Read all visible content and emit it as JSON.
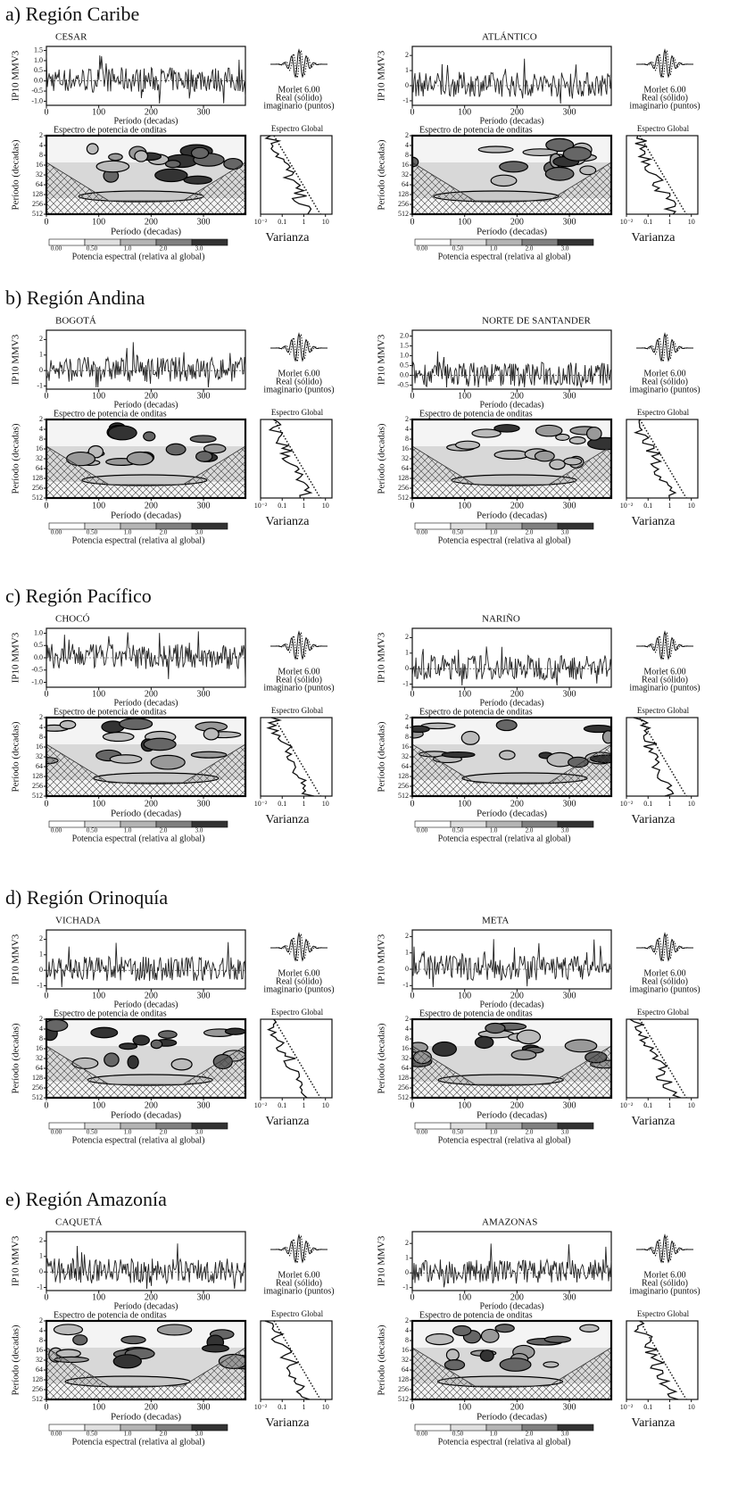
{
  "figure": {
    "labels": {
      "ts_ylabel": "IP10 MMV3",
      "period_label": "Período (decadas)",
      "morlet": "Morlet 6.00",
      "real": "Real (sólido)",
      "imag": "imaginario (puntos)",
      "spectrum_title": "Espectro de potencia de onditas",
      "global_title": "Espectro Global",
      "variance": "Varianza",
      "colorbar_label": "Potencia espectral (relativa al global)"
    },
    "time_xlim": [
      0,
      380
    ],
    "time_xticks": [
      0,
      100,
      200,
      300
    ],
    "period_ylim": [
      2,
      512
    ],
    "period_yticks": [
      2,
      4,
      8,
      16,
      32,
      64,
      128,
      256,
      512
    ],
    "variance_xlim": [
      0.01,
      20
    ],
    "variance_xticks": [
      {
        "value": 0.01,
        "label": "10⁻²"
      },
      0.1,
      1,
      10
    ],
    "colorbar_ticks": [
      {
        "value": 0,
        "label": "0.00"
      },
      {
        "value": 0.5,
        "label": "0.50"
      },
      {
        "value": 1,
        "label": "1.0"
      },
      {
        "value": 2,
        "label": "2.0"
      },
      {
        "value": 3,
        "label": "3.0"
      }
    ],
    "regions": [
      {
        "title": "a) Región Caribe",
        "panels": [
          {
            "name": "CESAR",
            "ylim": [
              -1.2,
              1.7
            ],
            "yticks": [
              1.5,
              {
                "value": 1,
                "label": "1.0"
              },
              0.5,
              {
                "value": 0,
                "label": "0.0"
              },
              -0.5,
              {
                "value": -1,
                "label": "-1.0"
              }
            ]
          },
          {
            "name": "ATLÁNTICO",
            "ylim": [
              -1.3,
              2.6
            ],
            "yticks": [
              2,
              1,
              0,
              -1
            ]
          }
        ]
      },
      {
        "title": "b) Región Andina",
        "panels": [
          {
            "name": "BOGOTÁ",
            "ylim": [
              -1.2,
              2.6
            ],
            "yticks": [
              2,
              1,
              0,
              -1
            ]
          },
          {
            "name": "NORTE DE SANTANDER",
            "ylim": [
              -0.7,
              2.3
            ],
            "yticks": [
              {
                "value": 2,
                "label": "2.0"
              },
              1.5,
              {
                "value": 1,
                "label": "1.0"
              },
              0.5,
              {
                "value": 0,
                "label": "0.0"
              },
              -0.5
            ]
          }
        ]
      },
      {
        "title": "c) Región Pacífico",
        "panels": [
          {
            "name": "CHOCÓ",
            "ylim": [
              -1.2,
              1.2
            ],
            "yticks": [
              {
                "value": 1,
                "label": "1.0"
              },
              0.5,
              {
                "value": 0,
                "label": "0.0"
              },
              -0.5,
              {
                "value": -1,
                "label": "-1.0"
              }
            ]
          },
          {
            "name": "NARIÑO",
            "ylim": [
              -1.2,
              2.6
            ],
            "yticks": [
              2,
              1,
              0,
              -1
            ]
          }
        ]
      },
      {
        "title": "d) Región Orinoquía",
        "panels": [
          {
            "name": "VICHADA",
            "ylim": [
              -1.2,
              2.6
            ],
            "yticks": [
              2,
              1,
              0,
              -1
            ]
          },
          {
            "name": "META",
            "ylim": [
              -1.2,
              2.4
            ],
            "yticks": [
              2,
              1,
              0,
              -1
            ]
          }
        ]
      },
      {
        "title": "e) Región Amazonía",
        "panels": [
          {
            "name": "CAQUETÁ",
            "ylim": [
              -1.2,
              2.6
            ],
            "yticks": [
              2,
              1,
              0,
              -1
            ]
          },
          {
            "name": "AMAZONAS",
            "ylim": [
              -1.2,
              2.8
            ],
            "yticks": [
              2,
              1,
              0,
              -1
            ]
          }
        ]
      }
    ]
  }
}
